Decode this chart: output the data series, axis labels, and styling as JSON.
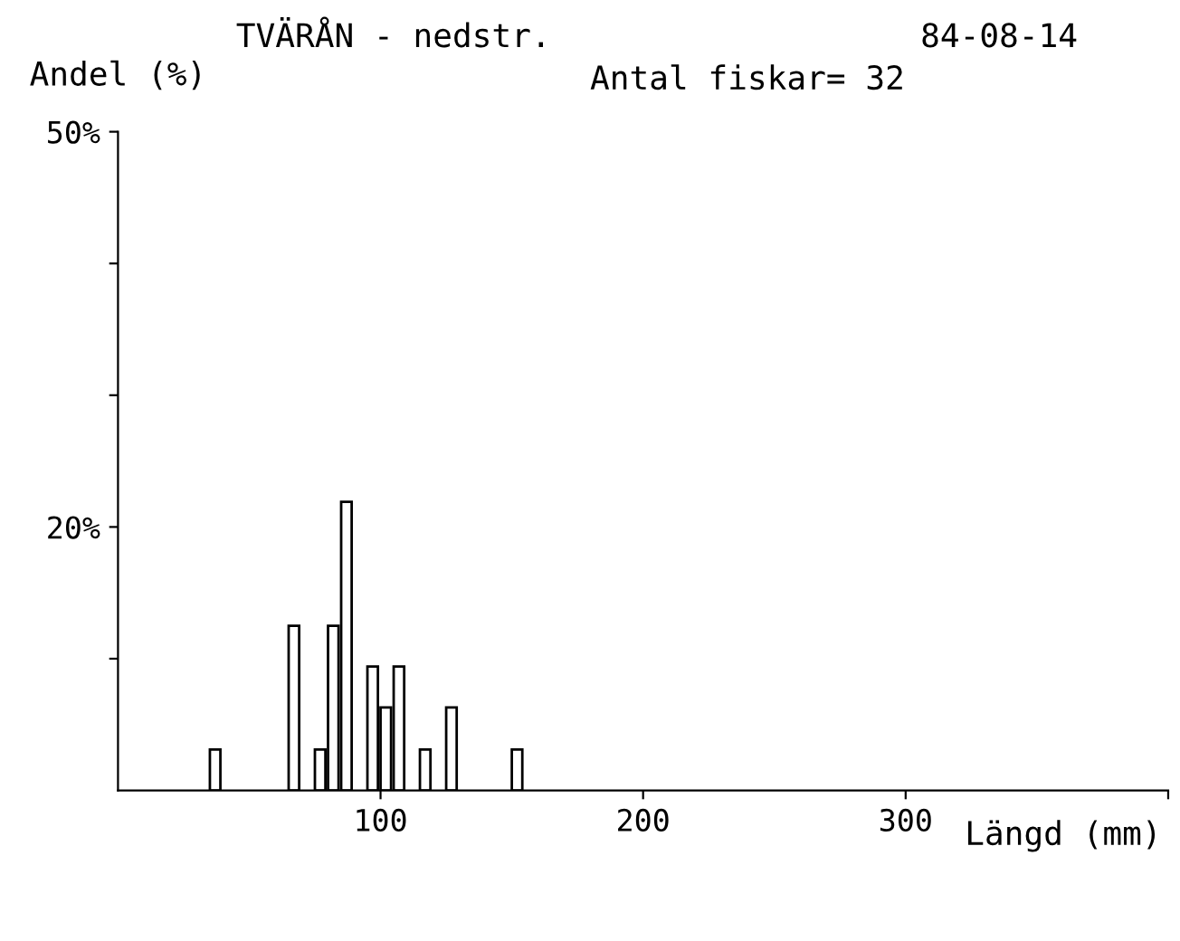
{
  "chart_data": {
    "type": "histogram",
    "title": "TVÄRÅN - nedstr.",
    "ylabel": "Andel (%)",
    "xlabel": "Längd (mm)",
    "annotations": [
      "84-08-14",
      "Antal fiskar= 32"
    ],
    "bins": [
      35,
      40,
      45,
      50,
      55,
      60,
      65,
      70,
      75,
      80,
      85,
      90,
      95,
      100,
      105,
      110,
      115,
      120,
      125,
      130,
      135,
      140,
      145,
      150,
      155
    ],
    "values": [
      3.1,
      0,
      0,
      0,
      0,
      0,
      12.5,
      0,
      3.1,
      12.5,
      21.9,
      0,
      9.4,
      6.3,
      9.4,
      0,
      3.1,
      0,
      6.3,
      0,
      0,
      0,
      0,
      3.1
    ],
    "color": "#000000",
    "xlim": [
      0,
      400
    ],
    "xticks": [
      100,
      200,
      300,
      {
        "value": 400,
        "label": null
      }
    ],
    "ylim": [
      0,
      50
    ],
    "yticks": [
      {
        "value": 10,
        "label": null
      },
      {
        "value": 20,
        "label": "20%"
      },
      {
        "value": 30,
        "label": null
      },
      {
        "value": 40,
        "label": null
      },
      {
        "value": 50,
        "label": "50%"
      }
    ],
    "grid": false
  }
}
